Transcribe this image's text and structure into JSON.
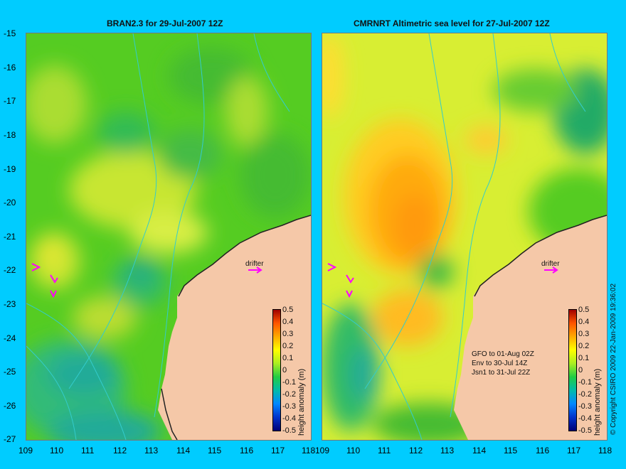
{
  "left_panel": {
    "title": "BRAN2.3 for 29-Jul-2007 12Z",
    "drifter_label": "drifter",
    "colorbar_label": "height anomaly (m)"
  },
  "right_panel": {
    "title": "CMRNRT Altimetric sea level  for 27-Jul-2007 12Z",
    "drifter_label": "drifter",
    "colorbar_label": "height anomaly (m)",
    "satellite_notes": [
      "GFO to 01-Aug 02Z",
      "Env to 30-Jul 14Z",
      "Jsn1 to 31-Jul 22Z"
    ]
  },
  "y_axis_ticks": [
    "-15",
    "-16",
    "-17",
    "-18",
    "-19",
    "-20",
    "-21",
    "-22",
    "-23",
    "-24",
    "-25",
    "-26",
    "-27"
  ],
  "x_axis_ticks": [
    "109",
    "110",
    "111",
    "112",
    "113",
    "114",
    "115",
    "116",
    "117",
    "118"
  ],
  "colorbar_ticks": [
    "0.5",
    "0.4",
    "0.3",
    "0.2",
    "0.1",
    "0",
    "-0.1",
    "-0.2",
    "-0.3",
    "-0.4",
    "-0.5"
  ],
  "copyright": "© Copyright CSIRO 2009   22-Jan-2009 19:36:02",
  "colors": {
    "background": "#00ccff",
    "land": "#f5c8a8",
    "coast_shelf": "#c8a58a",
    "contour": "#33cccc",
    "arrow": "#ff00ff"
  }
}
